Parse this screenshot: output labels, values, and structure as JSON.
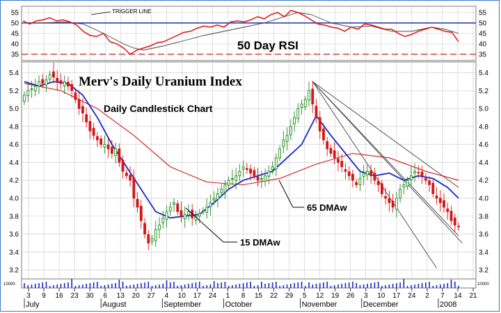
{
  "colors": {
    "background": "#ffffff",
    "frame": "#3a78c8",
    "grid": "#c8c8c8",
    "rsi": "#e01010",
    "rsi_avg": "#404040",
    "trigger": "#1a2fb0",
    "threshold": "#d01818",
    "up_candle": "#1a8a1a",
    "down_candle": "#d01818",
    "ma15": "#1426c8",
    "ma65": "#d01818",
    "volume": "#1426c8",
    "trendline": "#404040"
  },
  "icons": [
    "none"
  ],
  "chart_data": [
    {
      "type": "line",
      "panel": "rsi",
      "title": "50 Day RSI",
      "ylim": [
        32,
        58
      ],
      "yticks": [
        "35",
        "40",
        "45",
        "50",
        "55"
      ],
      "grid": true,
      "trigger_line": {
        "label": "TRIGGER LINE",
        "value": 50
      },
      "threshold_line": 35,
      "series": [
        {
          "role": "rsi",
          "x": [
            0,
            2,
            4,
            6,
            8,
            10,
            12,
            14,
            16,
            18,
            20,
            22,
            24,
            26,
            28,
            30,
            32,
            34,
            36,
            38,
            40,
            42,
            44,
            46,
            48,
            50,
            52,
            54,
            56,
            58,
            60,
            62,
            64,
            66,
            68,
            70,
            72,
            74,
            76,
            78,
            80,
            82,
            84,
            86,
            88,
            90,
            92,
            94,
            96,
            98,
            100,
            102,
            104,
            106,
            108,
            110,
            112,
            114,
            116,
            118,
            120,
            122,
            124,
            126,
            128,
            130
          ],
          "values": [
            51,
            49.5,
            51,
            51.5,
            52.5,
            51,
            51.5,
            50.5,
            49,
            46,
            44,
            43.5,
            45,
            41,
            40,
            38,
            35,
            37,
            38,
            39,
            40.5,
            41,
            42.5,
            44,
            45.5,
            46,
            47.5,
            48.5,
            48,
            49,
            48,
            50.5,
            51,
            50.5,
            51.5,
            53,
            52,
            54,
            55,
            53,
            56,
            55,
            53.5,
            51.5,
            49.5,
            49,
            48,
            47.5,
            46,
            48,
            47,
            49.5,
            49,
            48,
            47,
            47,
            45,
            43.5,
            44.5,
            46,
            47,
            48,
            47,
            46,
            45.5,
            41
          ]
        },
        {
          "role": "average",
          "x": [
            0,
            6,
            12,
            18,
            24,
            30,
            33,
            36,
            42,
            48,
            54,
            60,
            66,
            72,
            78,
            82,
            86,
            92,
            98,
            104,
            110,
            116,
            122,
            126,
            130
          ],
          "values": [
            50,
            50,
            50.5,
            49.5,
            45,
            40,
            38,
            37,
            39,
            41.5,
            44,
            46,
            48,
            50,
            53,
            55,
            54,
            50,
            48,
            48.5,
            46,
            46,
            48,
            47,
            45
          ]
        }
      ]
    },
    {
      "type": "candlestick",
      "panel": "price",
      "title": "Merv's Daily Uranium Index",
      "subtitle": "Daily Candlestick Chart",
      "ylim": [
        3.1,
        5.52
      ],
      "yticks": [
        "3.2",
        "3.4",
        "3.6",
        "3.8",
        "4.0",
        "4.2",
        "4.4",
        "4.6",
        "4.8",
        "5.0",
        "5.2",
        "5.4"
      ],
      "grid": true,
      "close": [
        5.15,
        5.2,
        5.22,
        5.25,
        5.3,
        5.28,
        5.32,
        5.38,
        5.35,
        5.3,
        5.28,
        5.3,
        5.25,
        5.2,
        5.1,
        5.0,
        4.95,
        4.85,
        4.75,
        4.7,
        4.65,
        4.6,
        4.6,
        4.55,
        4.5,
        4.55,
        4.4,
        4.3,
        4.25,
        4.2,
        4.0,
        3.9,
        3.75,
        3.6,
        3.5,
        3.55,
        3.65,
        3.7,
        3.78,
        3.85,
        3.9,
        3.95,
        3.85,
        3.8,
        3.82,
        3.85,
        3.78,
        3.8,
        3.83,
        3.86,
        3.9,
        3.95,
        4.0,
        4.05,
        4.1,
        4.15,
        4.2,
        4.22,
        4.25,
        4.3,
        4.35,
        4.32,
        4.28,
        4.25,
        4.2,
        4.22,
        4.25,
        4.3,
        4.35,
        4.45,
        4.55,
        4.65,
        4.7,
        4.8,
        4.9,
        5.0,
        5.05,
        5.1,
        5.2,
        5.05,
        4.9,
        4.75,
        4.65,
        4.55,
        4.5,
        4.45,
        4.4,
        4.35,
        4.3,
        4.25,
        4.2,
        4.15,
        4.22,
        4.28,
        4.3,
        4.25,
        4.2,
        4.15,
        4.05,
        4.0,
        3.95,
        3.9,
        4.0,
        4.1,
        4.15,
        4.2,
        4.25,
        4.3,
        4.28,
        4.25,
        4.2,
        4.15,
        4.05,
        4.0,
        3.95,
        3.9,
        3.85,
        3.75,
        3.7,
        3.68
      ],
      "series": [
        {
          "name": "15 DMAw",
          "role": "ma15",
          "x": [
            0,
            4,
            8,
            12,
            16,
            20,
            24,
            28,
            32,
            36,
            40,
            44,
            48,
            52,
            56,
            60,
            64,
            68,
            72,
            76,
            80,
            84,
            88,
            92,
            96,
            100,
            104,
            108,
            112,
            116,
            119
          ],
          "values": [
            5.3,
            5.25,
            5.3,
            5.28,
            5.15,
            4.9,
            4.6,
            4.35,
            4.1,
            3.85,
            3.78,
            3.8,
            3.82,
            3.95,
            4.1,
            4.2,
            4.25,
            4.3,
            4.45,
            4.6,
            4.92,
            4.7,
            4.5,
            4.3,
            4.25,
            4.28,
            4.2,
            4.25,
            4.22,
            4.12,
            4.0
          ]
        },
        {
          "name": "65 DMAw",
          "role": "ma65",
          "x": [
            0,
            10,
            20,
            30,
            40,
            50,
            60,
            70,
            80,
            90,
            100,
            110,
            119
          ],
          "values": [
            5.28,
            5.2,
            5.0,
            4.7,
            4.35,
            4.18,
            4.15,
            4.22,
            4.38,
            4.5,
            4.45,
            4.3,
            4.2
          ]
        },
        {
          "role": "trendlines",
          "lines": [
            [
              79,
              5.3,
              119,
              4.12
            ],
            [
              79,
              5.3,
              119,
              3.58
            ],
            [
              79,
              5.3,
              113,
              3.22
            ],
            [
              79,
              5.3,
              120,
              3.5
            ]
          ]
        }
      ]
    },
    {
      "type": "bar",
      "panel": "volume",
      "yticks": [
        "10000"
      ]
    },
    {
      "type": "axis",
      "x_tick_labels": [
        "3",
        "9",
        "16",
        "23",
        "30",
        "6",
        "13",
        "20",
        "27",
        "4",
        "10",
        "17",
        "24",
        "1",
        "8",
        "15",
        "22",
        "29",
        "5",
        "12",
        "19",
        "26",
        "3",
        "10",
        "17",
        "24",
        "2",
        "7",
        "14",
        "21"
      ],
      "month_labels": [
        "July",
        "August",
        "September",
        "October",
        "November",
        "December",
        "2008"
      ],
      "annotations": [
        "15 DMAw",
        "65 DMAw"
      ]
    }
  ]
}
